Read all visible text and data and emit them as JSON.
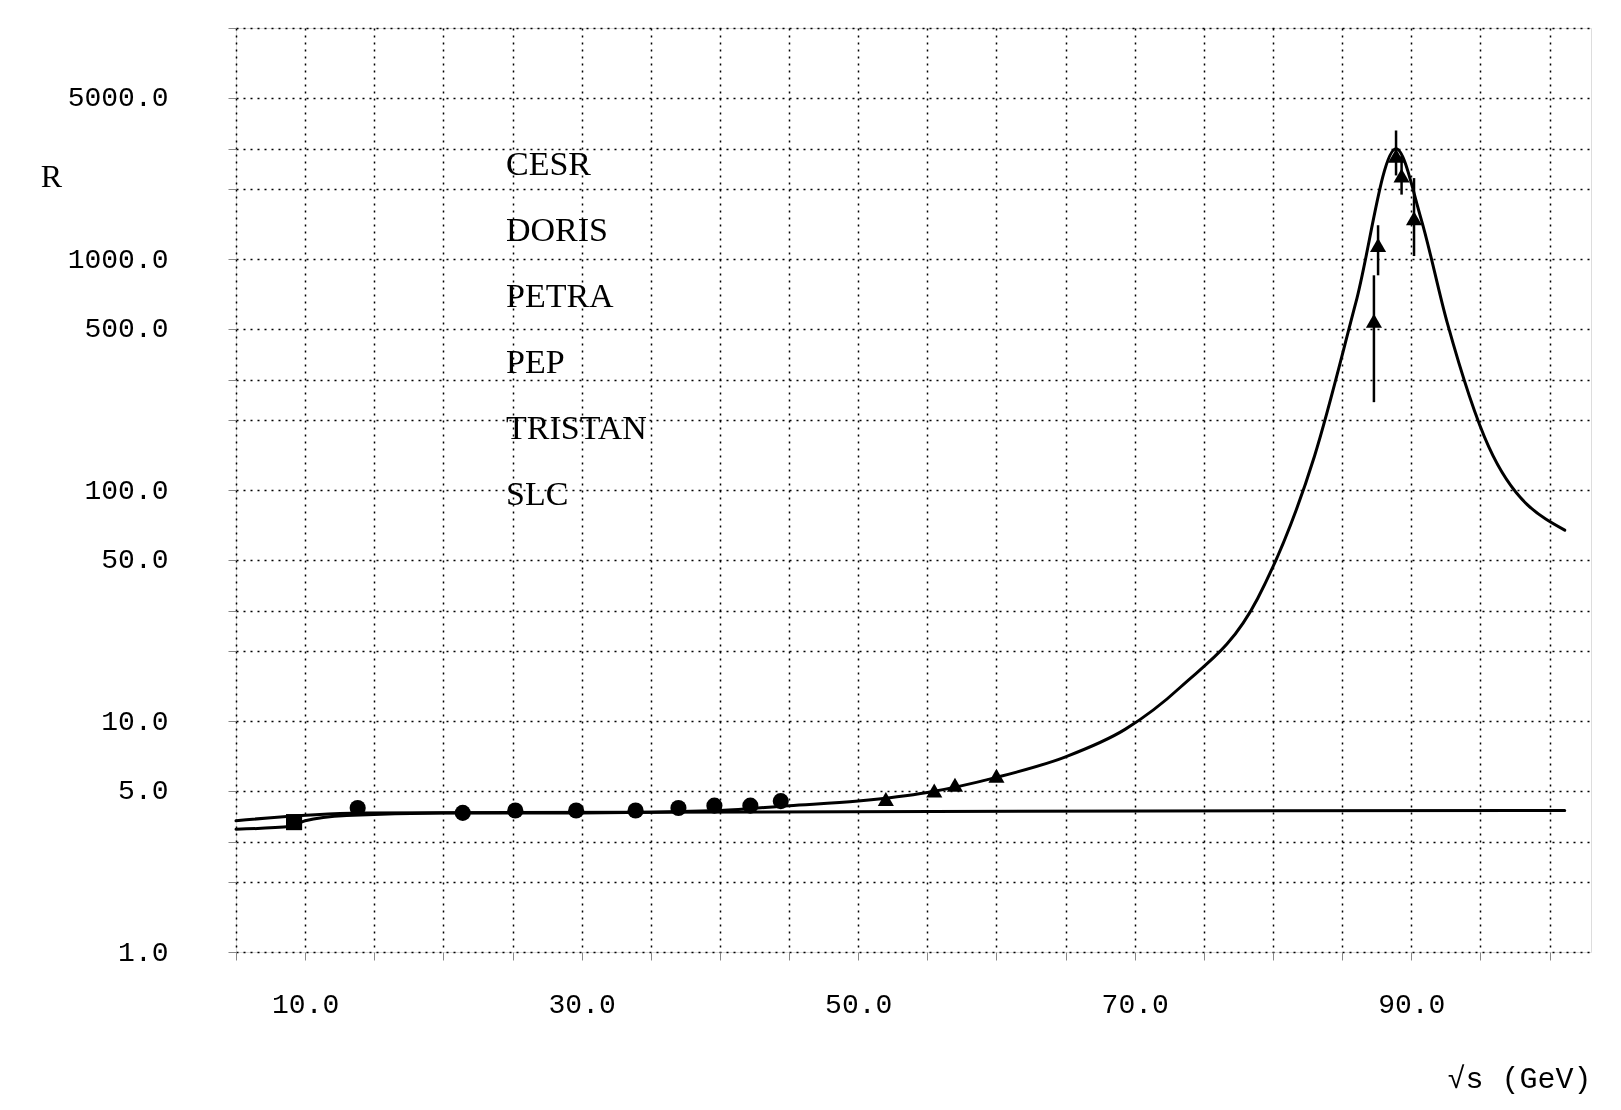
{
  "chart_data": {
    "type": "line",
    "xlabel": "√s (GeV)",
    "ylabel": "R",
    "log": "y",
    "grid": true,
    "xlim": [
      5,
      103
    ],
    "xticks": [
      {
        "value": 5,
        "label": null
      },
      {
        "value": 10,
        "label": "10.0"
      },
      {
        "value": 15,
        "label": null
      },
      {
        "value": 20,
        "label": null
      },
      {
        "value": 25,
        "label": null
      },
      {
        "value": 30,
        "label": "30.0"
      },
      {
        "value": 35,
        "label": null
      },
      {
        "value": 40,
        "label": null
      },
      {
        "value": 45,
        "label": null
      },
      {
        "value": 50,
        "label": "50.0"
      },
      {
        "value": 55,
        "label": null
      },
      {
        "value": 60,
        "label": null
      },
      {
        "value": 65,
        "label": null
      },
      {
        "value": 70,
        "label": "70.0"
      },
      {
        "value": 75,
        "label": null
      },
      {
        "value": 80,
        "label": null
      },
      {
        "value": 85,
        "label": null
      },
      {
        "value": 90,
        "label": "90.0"
      },
      {
        "value": 95,
        "label": null
      },
      {
        "value": 100,
        "label": null
      }
    ],
    "ylim": [
      1,
      10000
    ],
    "yticks": [
      {
        "value": 1,
        "label": "1.0"
      },
      {
        "value": 2,
        "label": null
      },
      {
        "value": 3,
        "label": null
      },
      {
        "value": 5,
        "label": "5.0"
      },
      {
        "value": 10,
        "label": "10.0"
      },
      {
        "value": 20,
        "label": null
      },
      {
        "value": 30,
        "label": null
      },
      {
        "value": 50,
        "label": "50.0"
      },
      {
        "value": 100,
        "label": "100.0"
      },
      {
        "value": 200,
        "label": null
      },
      {
        "value": 300,
        "label": null
      },
      {
        "value": 500,
        "label": "500.0"
      },
      {
        "value": 1000,
        "label": "1000.0"
      },
      {
        "value": 2000,
        "label": null
      },
      {
        "value": 3000,
        "label": null
      },
      {
        "value": 5000,
        "label": "5000.0"
      },
      {
        "value": 10000,
        "label": null
      }
    ],
    "annotations": [
      "CESR",
      "DORIS",
      "PETRA",
      "PEP",
      "TRISTAN",
      "SLC"
    ],
    "series": [
      {
        "color": "#000000",
        "marker": "none",
        "x": [
          5,
          9,
          10,
          13,
          20,
          30,
          40,
          45,
          50,
          55,
          60,
          65,
          69.3,
          73.3,
          78.9,
          83,
          86,
          88.9,
          90.7,
          92.6,
          95.6,
          101.1
        ],
        "values": [
          3.4,
          3.5,
          3.7,
          3.9,
          4.0,
          4.0,
          4.1,
          4.3,
          4.5,
          4.9,
          5.7,
          7.0,
          9.2,
          14,
          34,
          140,
          650,
          3000,
          1500,
          530,
          154,
          67
        ]
      },
      {
        "color": "#000000",
        "marker": "none",
        "x": [
          5,
          14,
          101.1
        ],
        "values": [
          3.7,
          4.0,
          4.1
        ]
      },
      {
        "type": "scatter",
        "color": "#000000",
        "marker": "circle",
        "x": [
          13.8,
          21.4,
          25.2,
          29.6,
          33.9,
          37,
          39.6,
          42.2,
          44.4
        ],
        "values": [
          4.2,
          4.0,
          4.1,
          4.1,
          4.1,
          4.2,
          4.3,
          4.3,
          4.5
        ]
      },
      {
        "type": "scatter",
        "color": "#000000",
        "marker": "square",
        "x": [
          9.2
        ],
        "values": [
          3.65
        ]
      },
      {
        "type": "scatter",
        "color": "#000000",
        "marker": "triangle",
        "x": [
          52,
          55.5,
          57,
          60,
          87.3,
          87.6,
          88.9,
          89.3,
          90.2
        ],
        "values": [
          4.6,
          5.0,
          5.3,
          5.8,
          540,
          1150,
          2800,
          2300,
          1500
        ],
        "errors": [
          null,
          null,
          null,
          null,
          [
            240,
            850
          ],
          [
            850,
            1400
          ],
          [
            2300,
            3600
          ],
          [
            1900,
            2800
          ],
          [
            1030,
            2240
          ]
        ]
      }
    ]
  }
}
